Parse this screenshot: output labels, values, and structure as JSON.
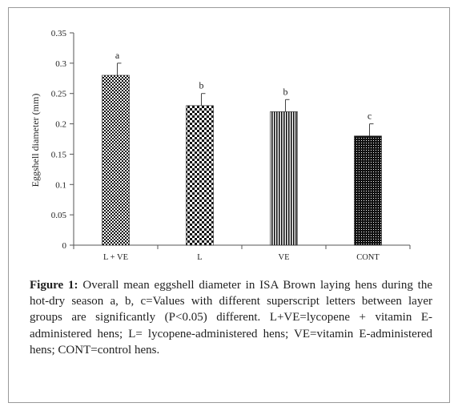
{
  "chart_data": {
    "type": "bar",
    "categories": [
      "L + VE",
      "L",
      "VE",
      "CONT"
    ],
    "values": [
      0.28,
      0.23,
      0.22,
      0.18
    ],
    "errors": [
      0.02,
      0.02,
      0.02,
      0.02
    ],
    "significance_letters": [
      "a",
      "b",
      "b",
      "c"
    ],
    "fill_patterns": [
      "diagonal-checker",
      "checkerboard",
      "vertical-stripes",
      "dense-dots"
    ],
    "ylabel": "Eggshell diameter (mm)",
    "xlabel": "",
    "ylim": [
      0,
      0.35
    ],
    "yticks": [
      "0",
      "0.05",
      "0.1",
      "0.15",
      "0.2",
      "0.25",
      "0.3",
      "0.35"
    ],
    "grid": false,
    "legend": "none"
  },
  "caption": {
    "label": "Figure 1:",
    "text": "Overall mean eggshell diameter in ISA Brown laying hens during the hot-dry season a, b, c=Values with different superscript letters between layer groups are significantly (P<0.05) different. L+VE=lycopene + vitamin E-administered hens; L= lycopene-administered hens; VE=vitamin E-administered hens; CONT=control hens."
  }
}
